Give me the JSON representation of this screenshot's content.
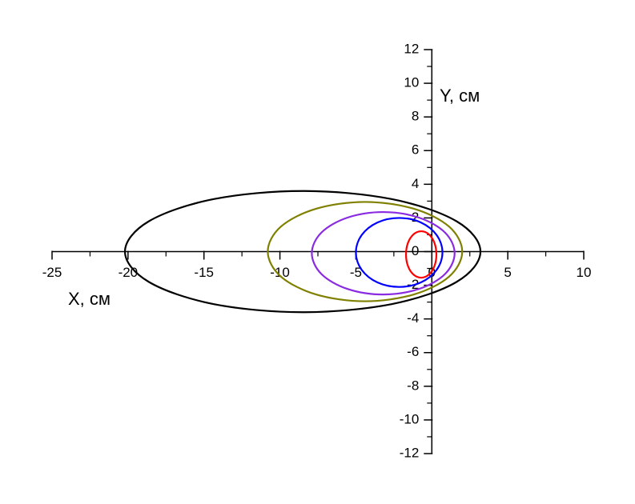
{
  "chart_data": {
    "type": "line",
    "xlabel": "X, см",
    "ylabel": "Y, см",
    "xlim": [
      -25,
      10
    ],
    "ylim": [
      -12,
      12
    ],
    "xticks": [
      -25,
      -20,
      -15,
      -10,
      -5,
      0,
      5,
      10
    ],
    "yticks": [
      -12,
      -10,
      -8,
      -6,
      -4,
      -2,
      0,
      2,
      4,
      6,
      8,
      10,
      12
    ],
    "xminorticks": [
      -22.5,
      -17.5,
      -12.5,
      -7.5,
      -2.5,
      2.5,
      7.5
    ],
    "yminorticks": [
      -11,
      -9,
      -7,
      -5,
      -3,
      -1,
      1,
      3,
      5,
      7,
      9,
      11
    ],
    "series": [
      {
        "color": "#000000",
        "x": [
          3.2,
          1.63,
          -2.65,
          -8.5,
          -14.35,
          -18.63,
          -20.2,
          -18.63,
          -14.35,
          -8.5,
          -2.65,
          1.63
        ],
        "y": [
          0,
          1.8,
          3.12,
          3.6,
          3.12,
          1.8,
          0,
          -1.8,
          -3.12,
          -3.6,
          -3.12,
          -1.8
        ]
      },
      {
        "color": "#808000",
        "x": [
          2.0,
          1.14,
          -1.2,
          -4.4,
          -7.6,
          -9.94,
          -10.8,
          -9.94,
          -7.6,
          -4.4,
          -1.2,
          1.14
        ],
        "y": [
          0,
          1.48,
          2.55,
          2.95,
          2.55,
          1.48,
          0,
          -1.48,
          -2.55,
          -2.95,
          -2.55,
          -1.48
        ]
      },
      {
        "color": "#8a2be2",
        "x": [
          1.5,
          0.87,
          -0.85,
          -3.2,
          -5.55,
          -7.27,
          -7.9,
          -7.27,
          -5.55,
          -3.2,
          -0.85,
          0.87
        ],
        "y": [
          -0.1,
          1.13,
          2.02,
          2.35,
          2.02,
          1.13,
          -0.1,
          -1.33,
          -2.22,
          -2.55,
          -2.22,
          -1.33
        ]
      },
      {
        "color": "#0000ff",
        "x": [
          0.7,
          0.32,
          -0.72,
          -2.15,
          -3.58,
          -4.62,
          -5.0,
          -4.62,
          -3.58,
          -2.15,
          -0.72,
          0.32
        ],
        "y": [
          -0.05,
          0.98,
          1.73,
          2.0,
          1.73,
          0.98,
          -0.05,
          -1.08,
          -1.83,
          -2.1,
          -1.83,
          -1.08
        ]
      },
      {
        "color": "#ff0000",
        "x": [
          0.3,
          0.17,
          -0.2,
          -0.7,
          -1.2,
          -1.57,
          -1.7,
          -1.57,
          -1.2,
          -0.7,
          -0.2,
          0.17
        ],
        "y": [
          -0.17,
          0.52,
          1.03,
          1.21,
          1.03,
          0.52,
          -0.17,
          -0.86,
          -1.37,
          -1.55,
          -1.37,
          -0.86
        ]
      }
    ]
  }
}
